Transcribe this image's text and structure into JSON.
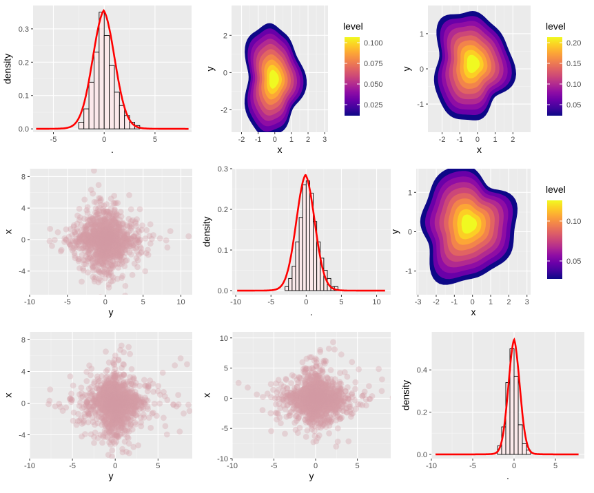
{
  "chart_data": [
    {
      "id": "p11",
      "type": "histogram+density",
      "xlabel": ".",
      "ylabel": "density",
      "xlim": [
        -7,
        8.6
      ],
      "ylim": [
        -0.01,
        0.37
      ],
      "xticks": [
        -5,
        0,
        5
      ],
      "yticks": [
        0.0,
        0.1,
        0.2,
        0.3
      ],
      "ytick_labels": [
        "0.0",
        "0.1",
        "0.2",
        "0.3"
      ],
      "bin_width": 0.5,
      "bin_centers": [
        -2.25,
        -1.75,
        -1.25,
        -0.75,
        -0.25,
        0.25,
        0.75,
        1.25,
        1.75,
        2.25,
        2.75,
        3.25
      ],
      "bin_values": [
        0.02,
        0.06,
        0.14,
        0.23,
        0.35,
        0.28,
        0.19,
        0.11,
        0.07,
        0.04,
        0.02,
        0.01
      ],
      "curve": {
        "mu": -0.05,
        "sigma": 1.12,
        "peak": 0.355,
        "tail": 0.12,
        "xmin": -6.7,
        "xmax": 8.3
      },
      "fill": "#fbe9ea",
      "curve_color": "#ff0000"
    },
    {
      "id": "p12",
      "type": "density2d",
      "xlabel": "x",
      "ylabel": "y",
      "xlim": [
        -2.6,
        3.2
      ],
      "ylim": [
        -3.2,
        3.6
      ],
      "xticks": [
        -2,
        -1,
        0,
        1,
        2,
        3
      ],
      "yticks": [
        -2,
        0,
        2
      ],
      "center": [
        -0.15,
        -0.4
      ],
      "radius": [
        1.75,
        3.0
      ],
      "legend": {
        "title": "level",
        "ticks": [
          "0.100",
          "0.075",
          "0.050",
          "0.025"
        ]
      }
    },
    {
      "id": "p13",
      "type": "density2d",
      "xlabel": "x",
      "ylabel": "y",
      "xlim": [
        -2.8,
        3.0
      ],
      "ylim": [
        -1.8,
        1.8
      ],
      "xticks": [
        -2,
        -1,
        0,
        1,
        2
      ],
      "yticks": [
        -1,
        0,
        1
      ],
      "center": [
        -0.35,
        0.1
      ],
      "radius": [
        2.2,
        1.55
      ],
      "legend": {
        "title": "level",
        "ticks": [
          "0.20",
          "0.15",
          "0.10",
          "0.05"
        ]
      }
    },
    {
      "id": "p21",
      "type": "scatter",
      "xlabel": "y",
      "ylabel": "x",
      "xlim": [
        -10,
        11.5
      ],
      "ylim": [
        -7,
        9
      ],
      "xticks": [
        -10,
        -5,
        0,
        5,
        10
      ],
      "yticks": [
        -4,
        0,
        4,
        8
      ],
      "spread": [
        2.6,
        2.4
      ],
      "point_color": "#d49aa5"
    },
    {
      "id": "p22",
      "type": "histogram+density",
      "xlabel": ".",
      "ylabel": "density",
      "xlim": [
        -10.5,
        12
      ],
      "ylim": [
        -0.01,
        0.3
      ],
      "xticks": [
        -10,
        -5,
        0,
        5,
        10
      ],
      "yticks": [
        0.0,
        0.1,
        0.2,
        0.3
      ],
      "ytick_labels": [
        "0.0",
        "0.1",
        "0.2",
        "0.3"
      ],
      "bin_width": 0.5,
      "bin_centers": [
        -2.75,
        -2.25,
        -1.75,
        -1.25,
        -0.75,
        -0.25,
        0.25,
        0.75,
        1.25,
        1.75,
        2.25,
        2.75,
        3.25,
        3.75,
        4.25
      ],
      "bin_values": [
        0.01,
        0.03,
        0.06,
        0.12,
        0.18,
        0.26,
        0.27,
        0.24,
        0.17,
        0.12,
        0.08,
        0.05,
        0.03,
        0.01,
        0.01
      ],
      "curve": {
        "mu": -0.1,
        "sigma": 1.35,
        "peak": 0.285,
        "tail": 0.1,
        "xmin": -9.8,
        "xmax": 11.2
      },
      "fill": "#fbe9ea",
      "curve_color": "#ff0000"
    },
    {
      "id": "p23",
      "type": "density2d",
      "xlabel": "x",
      "ylabel": "y",
      "xlim": [
        -3.1,
        3.2
      ],
      "ylim": [
        -1.6,
        1.6
      ],
      "xticks": [
        -3,
        -2,
        -1,
        0,
        1,
        2,
        3
      ],
      "yticks": [
        -1,
        0,
        1
      ],
      "center": [
        -0.3,
        0.15
      ],
      "radius": [
        2.6,
        1.45
      ],
      "legend": {
        "title": "level",
        "ticks": [
          "0.10",
          "0.05"
        ]
      }
    },
    {
      "id": "p31",
      "type": "scatter",
      "xlabel": "y",
      "ylabel": "x",
      "xlim": [
        -10,
        9
      ],
      "ylim": [
        -7,
        9
      ],
      "xticks": [
        -10,
        -5,
        0,
        5
      ],
      "yticks": [
        -4,
        0,
        4,
        8
      ],
      "spread": [
        2.2,
        2.5
      ],
      "point_color": "#d49aa5"
    },
    {
      "id": "p32",
      "type": "scatter",
      "xlabel": "y",
      "ylabel": "x",
      "xlim": [
        -10,
        9
      ],
      "ylim": [
        -10,
        11
      ],
      "xticks": [
        -10,
        -5,
        0,
        5
      ],
      "yticks": [
        -10,
        -5,
        0,
        5,
        10
      ],
      "spread": [
        2.4,
        2.7
      ],
      "point_color": "#d49aa5"
    },
    {
      "id": "p33",
      "type": "histogram+density",
      "xlabel": ".",
      "ylabel": "density",
      "xlim": [
        -10,
        8.5
      ],
      "ylim": [
        -0.02,
        0.58
      ],
      "xticks": [
        -10,
        -5,
        0,
        5
      ],
      "yticks": [
        0.0,
        0.2,
        0.4
      ],
      "ytick_labels": [
        "0.0",
        "0.2",
        "0.4"
      ],
      "bin_width": 0.5,
      "bin_centers": [
        -1.75,
        -1.25,
        -0.75,
        -0.25,
        0.25,
        0.75,
        1.25,
        1.75
      ],
      "bin_values": [
        0.04,
        0.13,
        0.34,
        0.5,
        0.37,
        0.14,
        0.05,
        0.02
      ],
      "curve": {
        "mu": 0.0,
        "sigma": 0.72,
        "peak": 0.545,
        "tail": 0.13,
        "xmin": -9.5,
        "xmax": 7.8
      },
      "fill": "#fbe9ea",
      "curve_color": "#ff0000"
    }
  ],
  "legend_colors": [
    "#0d0887",
    "#41049d",
    "#6a00a8",
    "#8f0da4",
    "#b12a90",
    "#cc4778",
    "#e16462",
    "#f2844b",
    "#fca636",
    "#fcce25",
    "#f0f921"
  ]
}
